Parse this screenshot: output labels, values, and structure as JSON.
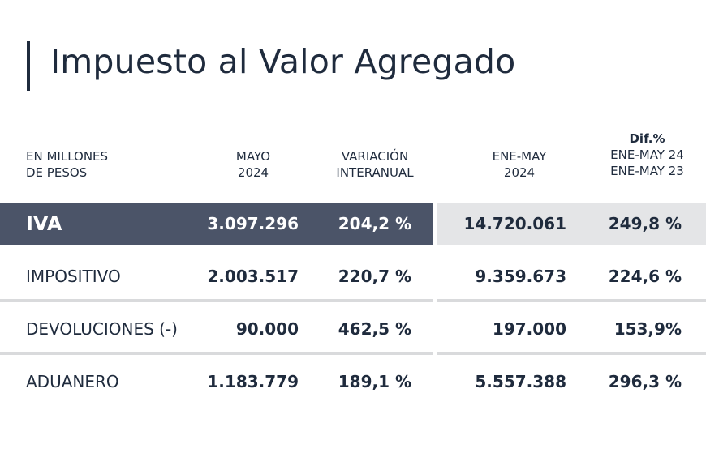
{
  "title": "Impuesto al Valor Agregado",
  "headers": {
    "unit_line1": "EN MILLONES",
    "unit_line2": "DE PESOS",
    "may_line1": "MAYO",
    "may_line2": "2024",
    "var_line1": "VARIACIÓN",
    "var_line2": "INTERANUAL",
    "ytd_line1": "ENE-MAY",
    "ytd_line2": "2024",
    "dif_line1": "Dif.%",
    "dif_line2": "ENE-MAY 24",
    "dif_line3": "ENE-MAY 23"
  },
  "rows": [
    {
      "label": "IVA",
      "mayo": "3.097.296",
      "variacion": "204,2 %",
      "enemay": "14.720.061",
      "dif": "249,8 %"
    },
    {
      "label": "IMPOSITIVO",
      "mayo": "2.003.517",
      "variacion": "220,7 %",
      "enemay": "9.359.673",
      "dif": "224,6 %"
    },
    {
      "label": "DEVOLUCIONES (-)",
      "mayo": "90.000",
      "variacion": "462,5 %",
      "enemay": "197.000",
      "dif": "153,9%"
    },
    {
      "label": "ADUANERO",
      "mayo": "1.183.779",
      "variacion": "189,1 %",
      "enemay": "5.557.388",
      "dif": "296,3 %"
    }
  ],
  "colors": {
    "text": "#1f2b3d",
    "iva_band": "#4b5468",
    "iva_band_right": "#e4e5e7",
    "separator": "#d9dadc"
  }
}
